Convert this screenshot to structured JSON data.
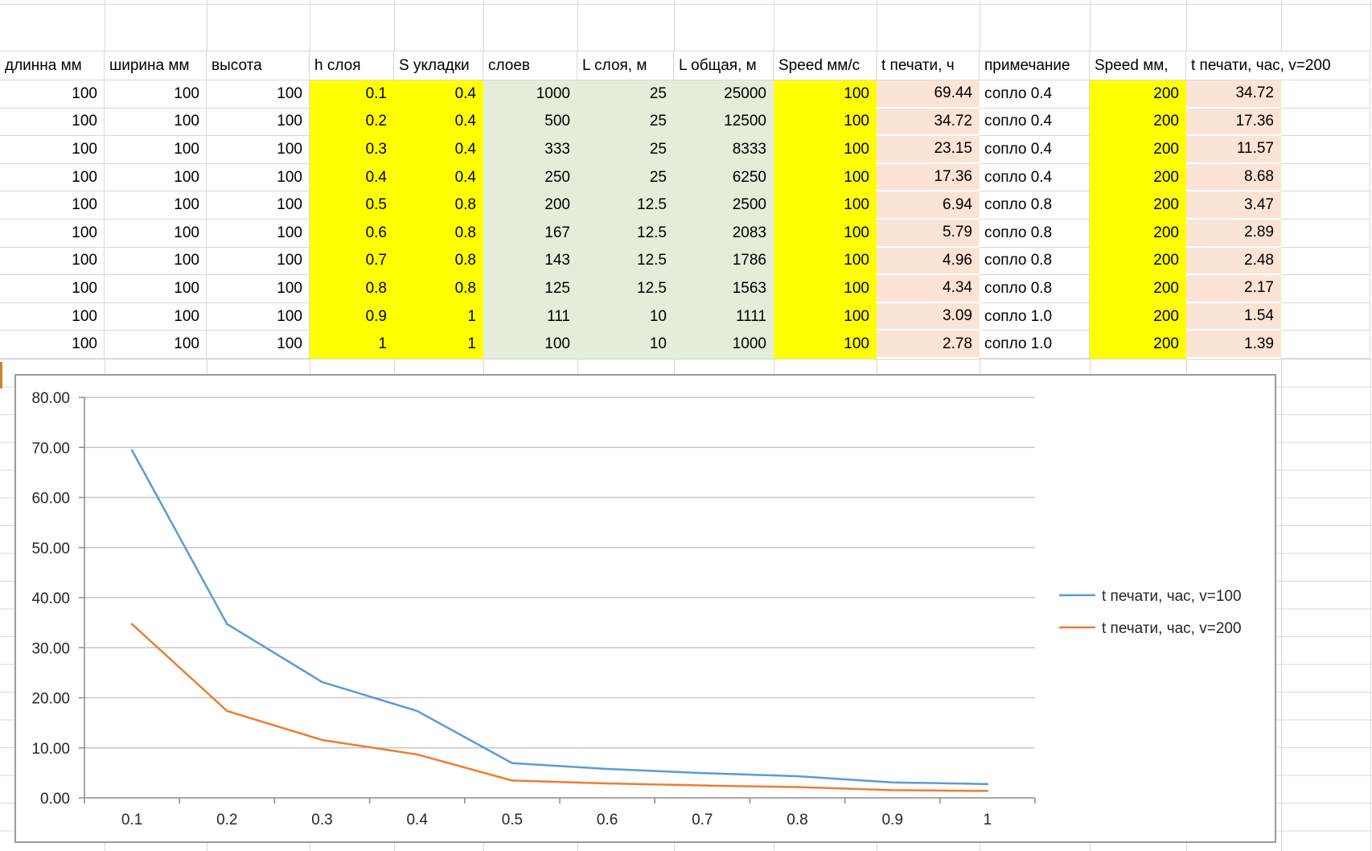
{
  "colors": {
    "yellow": "#ffff00",
    "green": "#e4edd9",
    "pink": "#fbe4d5",
    "gridline": "#d9d9d9",
    "chart_border": "#9b9b9b",
    "axis": "#8c8c8c",
    "chart_gridline": "#c6c6c6",
    "label_text": "#262626"
  },
  "table": {
    "headers": [
      "длинна мм",
      "ширина мм",
      "высота",
      "h слоя",
      "S укладки",
      "слоев",
      "L слоя, м",
      "L общая, м",
      "Speed мм/с",
      "t печати, ч",
      "примечание",
      "Speed мм,",
      "t печати, час, v=200"
    ],
    "rows": [
      [
        "100",
        "100",
        "100",
        "0.1",
        "0.4",
        "1000",
        "25",
        "25000",
        "100",
        "69.44",
        "сопло 0.4",
        "200",
        "34.72"
      ],
      [
        "100",
        "100",
        "100",
        "0.2",
        "0.4",
        "500",
        "25",
        "12500",
        "100",
        "34.72",
        "сопло 0.4",
        "200",
        "17.36"
      ],
      [
        "100",
        "100",
        "100",
        "0.3",
        "0.4",
        "333",
        "25",
        "8333",
        "100",
        "23.15",
        "сопло 0.4",
        "200",
        "11.57"
      ],
      [
        "100",
        "100",
        "100",
        "0.4",
        "0.4",
        "250",
        "25",
        "6250",
        "100",
        "17.36",
        "сопло 0.4",
        "200",
        "8.68"
      ],
      [
        "100",
        "100",
        "100",
        "0.5",
        "0.8",
        "200",
        "12.5",
        "2500",
        "100",
        "6.94",
        "сопло 0.8",
        "200",
        "3.47"
      ],
      [
        "100",
        "100",
        "100",
        "0.6",
        "0.8",
        "167",
        "12.5",
        "2083",
        "100",
        "5.79",
        "сопло 0.8",
        "200",
        "2.89"
      ],
      [
        "100",
        "100",
        "100",
        "0.7",
        "0.8",
        "143",
        "12.5",
        "1786",
        "100",
        "4.96",
        "сопло 0.8",
        "200",
        "2.48"
      ],
      [
        "100",
        "100",
        "100",
        "0.8",
        "0.8",
        "125",
        "12.5",
        "1563",
        "100",
        "4.34",
        "сопло 0.8",
        "200",
        "2.17"
      ],
      [
        "100",
        "100",
        "100",
        "0.9",
        "1",
        "111",
        "10",
        "1111",
        "100",
        "3.09",
        "сопло 1.0",
        "200",
        "1.54"
      ],
      [
        "100",
        "100",
        "100",
        "1",
        "1",
        "100",
        "10",
        "1000",
        "100",
        "2.78",
        "сопло 1.0",
        "200",
        "1.39"
      ]
    ]
  },
  "chart_data": {
    "type": "line",
    "categories": [
      "0.1",
      "0.2",
      "0.3",
      "0.4",
      "0.5",
      "0.6",
      "0.7",
      "0.8",
      "0.9",
      "1"
    ],
    "series": [
      {
        "name": "t печати, час, v=100",
        "color": "#5b9bd5",
        "values": [
          69.44,
          34.72,
          23.15,
          17.36,
          6.94,
          5.79,
          4.96,
          4.34,
          3.09,
          2.78
        ]
      },
      {
        "name": "t печати, час, v=200",
        "color": "#ed7d31",
        "values": [
          34.72,
          17.36,
          11.57,
          8.68,
          3.47,
          2.89,
          2.48,
          2.17,
          1.54,
          1.39
        ]
      }
    ],
    "title": "",
    "xlabel": "",
    "ylabel": "",
    "ylim": [
      0,
      80
    ],
    "ytick_step": 10,
    "ytick_labels": [
      "0.00",
      "10.00",
      "20.00",
      "30.00",
      "40.00",
      "50.00",
      "60.00",
      "70.00",
      "80.00"
    ],
    "grid": "horizontal",
    "legend_position": "right"
  }
}
